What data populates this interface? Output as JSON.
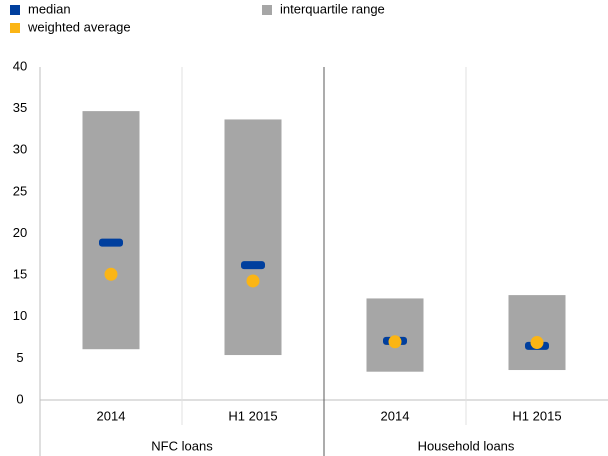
{
  "chart_data": {
    "type": "range",
    "categories": [
      "2014",
      "H1 2015",
      "2014",
      "H1 2015"
    ],
    "groups": [
      "NFC loans",
      "Household loans"
    ],
    "series": [
      {
        "name": "median",
        "color": "#003f9e",
        "values": [
          18.9,
          16.2,
          7.1,
          6.5
        ]
      },
      {
        "name": "weighted average",
        "color": "#fbb515",
        "values": [
          15.1,
          14.3,
          7.0,
          6.9
        ]
      },
      {
        "name": "interquartile range",
        "color": "#a6a6a6",
        "low": [
          6.1,
          5.4,
          3.4,
          3.6
        ],
        "high": [
          34.7,
          33.7,
          12.2,
          12.6
        ]
      }
    ],
    "ylim": [
      0,
      40
    ],
    "yticks": [
      0,
      5,
      10,
      15,
      20,
      25,
      30,
      35,
      40
    ],
    "grid": false
  }
}
